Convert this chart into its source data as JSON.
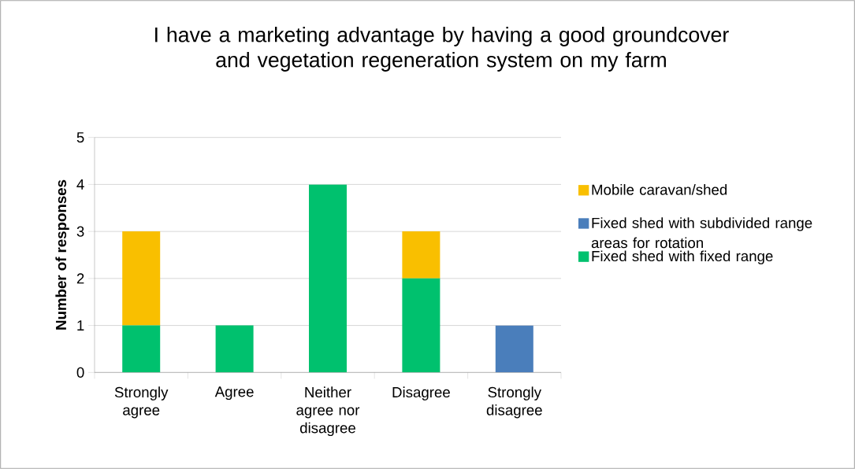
{
  "chart_data": {
    "type": "bar",
    "title": "I have a marketing advantage by having a good groundcover and vegetation regeneration system on my farm",
    "ylabel": "Number of responses",
    "categories": [
      "Strongly agree",
      "Agree",
      "Neither agree nor disagree",
      "Disagree",
      "Strongly disagree"
    ],
    "stacked": true,
    "ylim": [
      0,
      5
    ],
    "yticks": [
      0,
      1,
      2,
      3,
      4,
      5
    ],
    "grid": "y",
    "legend": "right",
    "series": [
      {
        "name": "Fixed shed with fixed range",
        "color": "#00c16e",
        "values": [
          1,
          1,
          4,
          2,
          0
        ]
      },
      {
        "name": "Fixed shed with subdivided range areas for rotation",
        "color": "#4a7ebb",
        "values": [
          0,
          0,
          0,
          0,
          1
        ]
      },
      {
        "name": "Mobile caravan/shed",
        "color": "#f9bf00",
        "values": [
          2,
          0,
          0,
          1,
          0
        ]
      }
    ]
  }
}
